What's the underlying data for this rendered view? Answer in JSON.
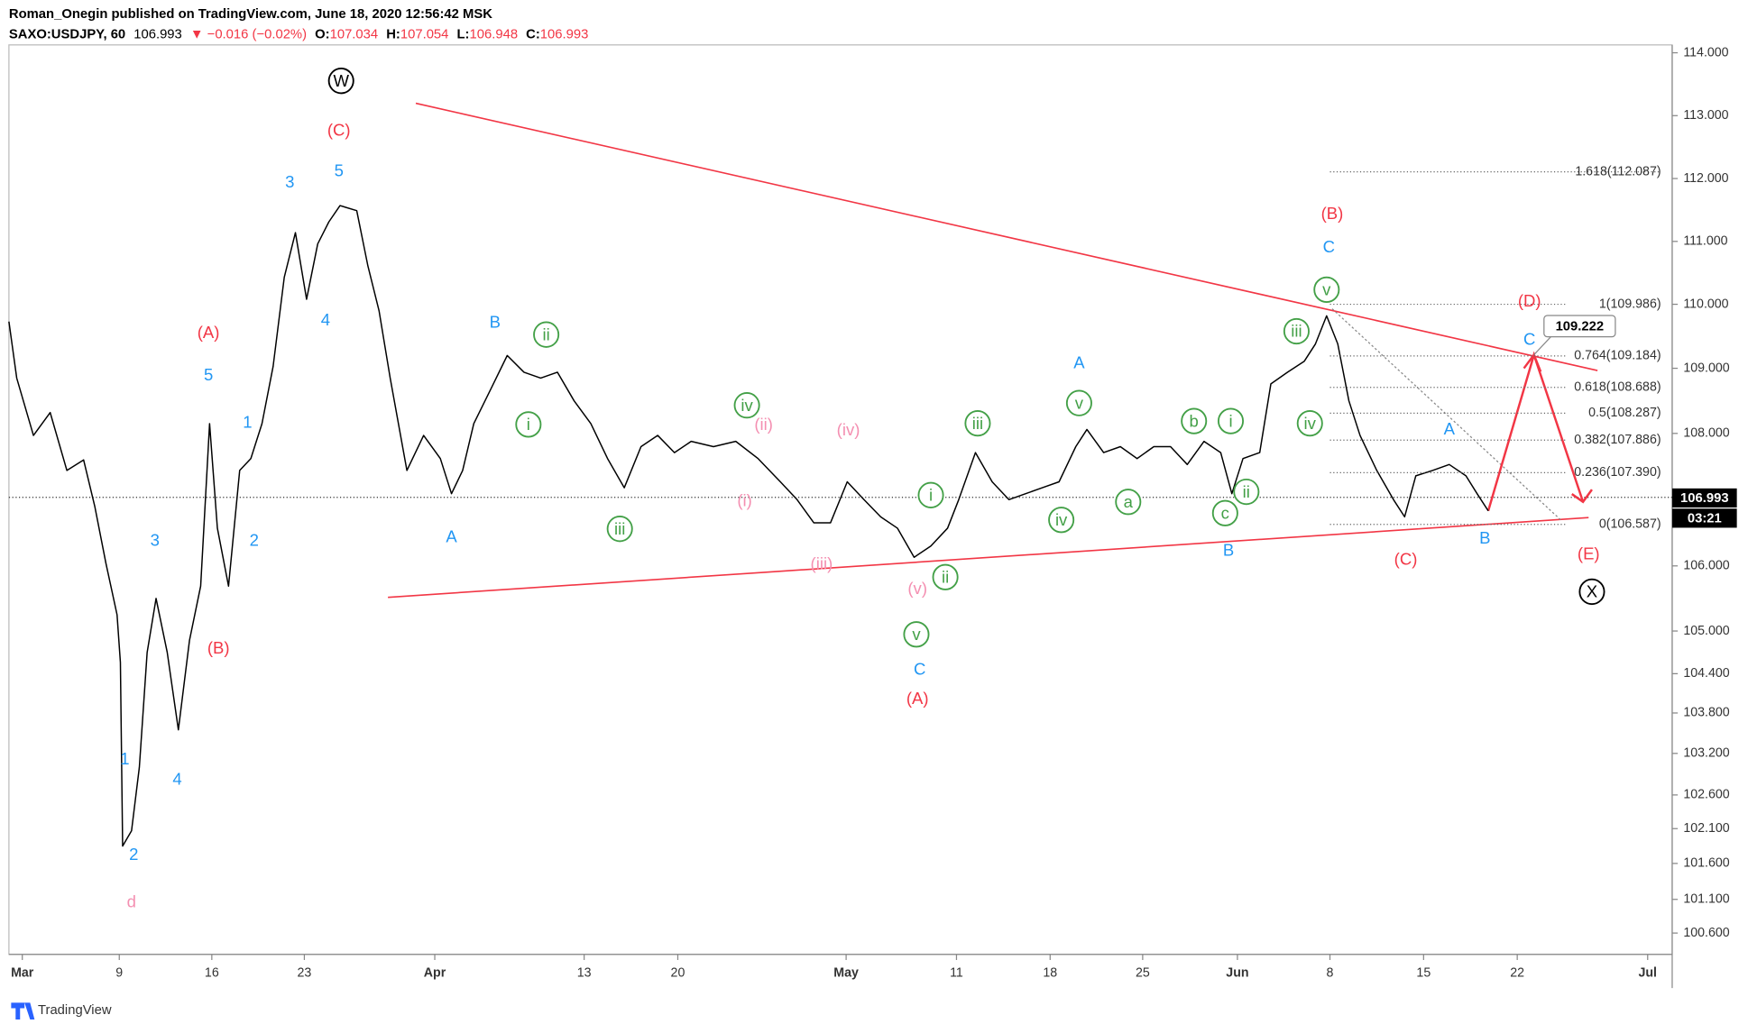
{
  "header": {
    "publisher": "Roman_Onegin published on TradingView.com, June 18, 2020 12:56:42 MSK",
    "symbol": "SAXO:USDJPY, 60",
    "last": "106.993",
    "change": "▼ −0.016 (−0.02%)",
    "o_label": "O:",
    "open": "107.034",
    "h_label": "H:",
    "high": "107.054",
    "l_label": "L:",
    "low": "106.948",
    "c_label": "C:",
    "close": "106.993"
  },
  "chart_data": {
    "type": "line",
    "series": [
      {
        "color": "#000000",
        "values": [
          109.73,
          108.85,
          107.97,
          108.32,
          107.44,
          107.6,
          106.9,
          106.04,
          105.25,
          104.56,
          101.85,
          102.07,
          103.0,
          104.7,
          105.5,
          104.7,
          103.55,
          104.87,
          105.69,
          108.15,
          106.57,
          105.69,
          107.44,
          107.62,
          108.15,
          109.03,
          110.43,
          111.14,
          110.08,
          110.96,
          111.31,
          111.57,
          111.49,
          110.61,
          109.9,
          108.85,
          107.44,
          107.97,
          107.62,
          107.09,
          107.44,
          108.15,
          108.67,
          109.2,
          108.94,
          108.85,
          108.94,
          108.5,
          108.15,
          107.62,
          107.18,
          107.8,
          107.97,
          107.71,
          107.88,
          107.8,
          107.88,
          107.62,
          107.27,
          107.0,
          106.65,
          106.65,
          107.27,
          107.0,
          106.74,
          106.57,
          106.13,
          106.3,
          106.57,
          107.0,
          107.71,
          107.27,
          107.0,
          107.09,
          107.18,
          107.27,
          107.8,
          108.06,
          107.71,
          107.8,
          107.62,
          107.8,
          107.8,
          107.53,
          107.88,
          107.71,
          107.09,
          107.62,
          107.71,
          108.76,
          108.94,
          109.11,
          109.38,
          109.82,
          109.38,
          108.5,
          107.97,
          107.44,
          107.0,
          106.74,
          107.36,
          107.44,
          107.53,
          107.36,
          107.09,
          106.83
        ]
      }
    ],
    "yticks": [
      {
        "value": 114,
        "label": "114.000"
      },
      {
        "value": 113,
        "label": "113.000"
      },
      {
        "value": 112,
        "label": "112.000"
      },
      {
        "value": 111,
        "label": "111.000"
      },
      {
        "value": 110,
        "label": "110.000"
      },
      {
        "value": 109,
        "label": "109.000"
      },
      {
        "value": 108,
        "label": "108.000"
      },
      {
        "value": 106,
        "label": "106.000"
      },
      {
        "value": 105,
        "label": "105.000"
      },
      {
        "value": 104.4,
        "label": "104.400"
      },
      {
        "value": 103.8,
        "label": "103.800"
      },
      {
        "value": 103.2,
        "label": "103.200"
      },
      {
        "value": 102.6,
        "label": "102.600"
      },
      {
        "value": 102.1,
        "label": "102.100"
      },
      {
        "value": 101.6,
        "label": "101.600"
      },
      {
        "value": 101.1,
        "label": "101.100"
      },
      {
        "value": 100.6,
        "label": "100.600"
      }
    ],
    "xticks": [
      "Mar",
      "9",
      "16",
      "23",
      "Apr",
      "13",
      "20",
      "May",
      "11",
      "18",
      "25",
      "Jun",
      "8",
      "15",
      "22",
      "Jul"
    ],
    "last_price_label": "106.993",
    "countdown": "03:21",
    "target_label": "109.222",
    "fib_levels": [
      "1.618(112.087)",
      "1(109.986)",
      "0.764(109.184)",
      "0.618(108.688)",
      "0.5(108.287)",
      "0.382(107.886)",
      "0.236(107.390)",
      "0(106.587)"
    ],
    "wave_labels": [
      {
        "text": "W",
        "color": "#000000",
        "circled": true
      },
      {
        "text": "X",
        "color": "#000000",
        "circled": true
      },
      {
        "text": "(C)",
        "color": "#f23645"
      },
      {
        "text": "(A)",
        "color": "#f23645"
      },
      {
        "text": "(B)",
        "color": "#f23645"
      },
      {
        "text": "(A)",
        "color": "#f23645"
      },
      {
        "text": "(B)",
        "color": "#f23645"
      },
      {
        "text": "(D)",
        "color": "#f23645"
      },
      {
        "text": "(C)",
        "color": "#f23645"
      },
      {
        "text": "(E)",
        "color": "#f23645"
      },
      {
        "text": "3",
        "color": "#2196f3"
      },
      {
        "text": "5",
        "color": "#2196f3"
      },
      {
        "text": "4",
        "color": "#2196f3"
      },
      {
        "text": "5",
        "color": "#2196f3"
      },
      {
        "text": "1",
        "color": "#2196f3"
      },
      {
        "text": "3",
        "color": "#2196f3"
      },
      {
        "text": "2",
        "color": "#2196f3"
      },
      {
        "text": "1",
        "color": "#2196f3"
      },
      {
        "text": "4",
        "color": "#2196f3"
      },
      {
        "text": "2",
        "color": "#2196f3"
      },
      {
        "text": "B",
        "color": "#2196f3"
      },
      {
        "text": "A",
        "color": "#2196f3"
      },
      {
        "text": "C",
        "color": "#2196f3"
      },
      {
        "text": "A",
        "color": "#2196f3"
      },
      {
        "text": "B",
        "color": "#2196f3"
      },
      {
        "text": "C",
        "color": "#2196f3"
      },
      {
        "text": "A",
        "color": "#2196f3"
      },
      {
        "text": "B",
        "color": "#2196f3"
      },
      {
        "text": "C",
        "color": "#2196f3"
      },
      {
        "text": "d",
        "color": "#f48fb1"
      },
      {
        "text": "(ii)",
        "color": "#f48fb1"
      },
      {
        "text": "(iv)",
        "color": "#f48fb1"
      },
      {
        "text": "(i)",
        "color": "#f48fb1"
      },
      {
        "text": "(iii)",
        "color": "#f48fb1"
      },
      {
        "text": "(v)",
        "color": "#f48fb1"
      },
      {
        "text": "ii",
        "color": "#43a047",
        "circled": true
      },
      {
        "text": "i",
        "color": "#43a047",
        "circled": true
      },
      {
        "text": "iii",
        "color": "#43a047",
        "circled": true
      },
      {
        "text": "iv",
        "color": "#43a047",
        "circled": true
      },
      {
        "text": "i",
        "color": "#43a047",
        "circled": true
      },
      {
        "text": "ii",
        "color": "#43a047",
        "circled": true
      },
      {
        "text": "v",
        "color": "#43a047",
        "circled": true
      },
      {
        "text": "iii",
        "color": "#43a047",
        "circled": true
      },
      {
        "text": "v",
        "color": "#43a047",
        "circled": true
      },
      {
        "text": "iv",
        "color": "#43a047",
        "circled": true
      },
      {
        "text": "a",
        "color": "#43a047",
        "circled": true
      },
      {
        "text": "b",
        "color": "#43a047",
        "circled": true
      },
      {
        "text": "i",
        "color": "#43a047",
        "circled": true
      },
      {
        "text": "ii",
        "color": "#43a047",
        "circled": true
      },
      {
        "text": "c",
        "color": "#43a047",
        "circled": true
      },
      {
        "text": "iii",
        "color": "#43a047",
        "circled": true
      },
      {
        "text": "v",
        "color": "#43a047",
        "circled": true
      },
      {
        "text": "iv",
        "color": "#43a047",
        "circled": true
      }
    ]
  },
  "footer": {
    "brand": "TradingView"
  }
}
